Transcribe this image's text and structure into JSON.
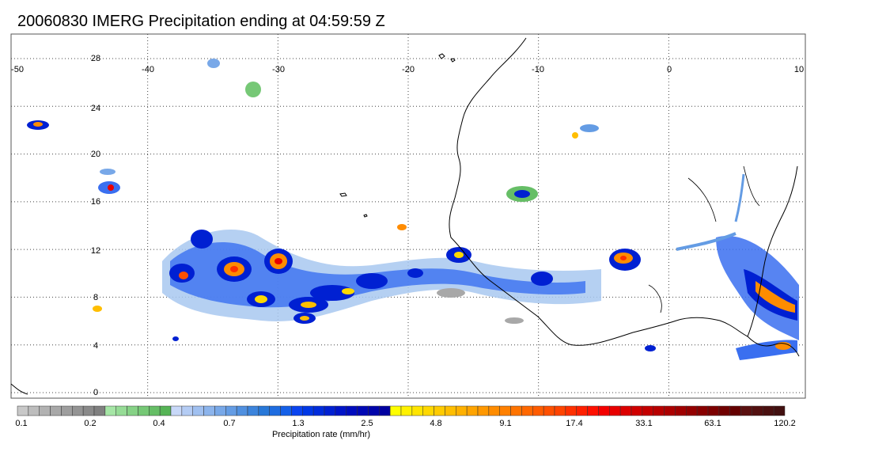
{
  "title": "20060830 IMERG Precipitation ending at 04:59:59 Z",
  "map": {
    "lon_range": [
      -50,
      10
    ],
    "lat_range": [
      -1,
      29.5
    ],
    "lon_ticks": [
      "-50",
      "-40",
      "-30",
      "-20",
      "-10",
      "0",
      "10"
    ],
    "lat_ticks": [
      "28",
      "24",
      "20",
      "16",
      "12",
      "8",
      "4",
      "0"
    ],
    "gridlines": "dotted",
    "coastline_color": "#000000"
  },
  "colorbar": {
    "label": "Precipitation rate (mm/hr)",
    "tick_labels": [
      "0.1",
      "0.2",
      "0.4",
      "0.7",
      "1.3",
      "2.5",
      "4.8",
      "9.1",
      "17.4",
      "33.1",
      "63.1",
      "120.2"
    ],
    "colors": [
      "#c8c8c8",
      "#bdbdbd",
      "#b2b2b2",
      "#a8a8a8",
      "#9e9e9e",
      "#949494",
      "#8a8a8a",
      "#808080",
      "#a6e6a6",
      "#96dc96",
      "#86d286",
      "#76c876",
      "#66be66",
      "#56b456",
      "#c8d8f8",
      "#b4ccf4",
      "#a0c0f0",
      "#8cb4ec",
      "#78a8e8",
      "#649ce4",
      "#5090e0",
      "#3c84dc",
      "#2878d8",
      "#1e6ce0",
      "#1460e8",
      "#0a44f0",
      "#0038e6",
      "#002cdc",
      "#0020d2",
      "#0014c8",
      "#000cbe",
      "#0008b4",
      "#0004aa",
      "#0000a0",
      "#ffff00",
      "#fff200",
      "#ffe500",
      "#ffd800",
      "#ffcb00",
      "#ffbe00",
      "#ffb100",
      "#ffa400",
      "#ff9800",
      "#ff8c00",
      "#ff8000",
      "#ff7400",
      "#ff6800",
      "#ff5c00",
      "#ff5000",
      "#ff4400",
      "#ff3000",
      "#ff2000",
      "#ff1000",
      "#f40000",
      "#e80000",
      "#dc0000",
      "#d00000",
      "#c40000",
      "#b80000",
      "#ac0000",
      "#a00000",
      "#940000",
      "#880000",
      "#7c0000",
      "#700000",
      "#640000",
      "#5a1010",
      "#521010",
      "#4a1010",
      "#421010"
    ]
  }
}
